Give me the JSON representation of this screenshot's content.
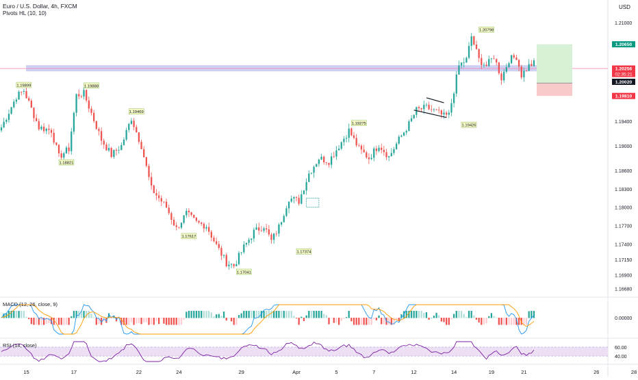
{
  "header": {
    "title": "Euro / U.S. Dollar, 4h, FXCM",
    "indicator": "Pivots HL (10, 10)",
    "currency": "USD"
  },
  "colors": {
    "up": "#26a69a",
    "down": "#ef5350",
    "price_line": "#f48fb1",
    "zone": "#c5c8f2",
    "target_zone": "#d7f0d6",
    "stop_zone": "#f9caca",
    "target_badge": "#089981",
    "stop_badge": "#f23645",
    "current_badge": "#f23645",
    "entry_badge": "#131722",
    "macd_line": "#2196f3",
    "signal_line": "#ff9800",
    "rsi_line": "#7b1fa2",
    "rsi_band": "#ede0f5",
    "pivot_label": "#f3f8c5"
  },
  "chart_data": {
    "type": "candlestick",
    "price_axis": {
      "ticks": [
        "1.21000",
        "1.19400",
        "1.19000",
        "1.18600",
        "1.18300",
        "1.18000",
        "1.17700",
        "1.17400",
        "1.17150",
        "1.16900",
        "1.16680"
      ],
      "tick_values": [
        1.21,
        1.194,
        1.19,
        1.186,
        1.183,
        1.18,
        1.177,
        1.174,
        1.1715,
        1.169,
        1.1668
      ],
      "ylim": [
        1.1655,
        1.2137
      ]
    },
    "x_axis": {
      "labels": [
        "15",
        "17",
        "22",
        "24",
        "29",
        "Apr",
        "5",
        "7",
        "12",
        "14",
        "19",
        "21",
        "26",
        "28"
      ]
    },
    "price_badges": {
      "target": {
        "label": "1.20650",
        "value": 1.2065
      },
      "current": {
        "label": "1.20256",
        "value": 1.20256,
        "countdown": "02:35:21"
      },
      "entry": {
        "label": "1.20020",
        "value": 1.2002
      },
      "stop": {
        "label": "1.19810",
        "value": 1.1981
      }
    },
    "pivots": [
      {
        "label": "1.19899",
        "value": 1.199,
        "kind": "high"
      },
      {
        "label": "1.19888",
        "value": 1.1989,
        "kind": "high"
      },
      {
        "label": "1.19469",
        "value": 1.1947,
        "kind": "high"
      },
      {
        "label": "1.18821",
        "value": 1.1882,
        "kind": "low"
      },
      {
        "label": "1.17617",
        "value": 1.1762,
        "kind": "low"
      },
      {
        "label": "1.17041",
        "value": 1.1704,
        "kind": "low"
      },
      {
        "label": "1.17374",
        "value": 1.1737,
        "kind": "low"
      },
      {
        "label": "1.19275",
        "value": 1.1928,
        "kind": "high"
      },
      {
        "label": "1.19426",
        "value": 1.1943,
        "kind": "low"
      },
      {
        "label": "1.20798",
        "value": 1.208,
        "kind": "high"
      }
    ],
    "waypoints": [
      [
        0,
        1.193
      ],
      [
        6,
        1.198
      ],
      [
        9,
        1.199
      ],
      [
        15,
        1.193
      ],
      [
        20,
        1.1925
      ],
      [
        23,
        1.1882
      ],
      [
        27,
        1.1895
      ],
      [
        30,
        1.1982
      ],
      [
        33,
        1.1985
      ],
      [
        40,
        1.191
      ],
      [
        44,
        1.1885
      ],
      [
        48,
        1.19
      ],
      [
        52,
        1.1945
      ],
      [
        56,
        1.19
      ],
      [
        60,
        1.183
      ],
      [
        66,
        1.18
      ],
      [
        70,
        1.1765
      ],
      [
        74,
        1.179
      ],
      [
        78,
        1.1775
      ],
      [
        82,
        1.177
      ],
      [
        86,
        1.1738
      ],
      [
        90,
        1.171
      ],
      [
        93,
        1.1705
      ],
      [
        97,
        1.1735
      ],
      [
        101,
        1.176
      ],
      [
        105,
        1.177
      ],
      [
        108,
        1.1745
      ],
      [
        111,
        1.1768
      ],
      [
        115,
        1.1815
      ],
      [
        119,
        1.181
      ],
      [
        123,
        1.1855
      ],
      [
        127,
        1.188
      ],
      [
        131,
        1.1875
      ],
      [
        135,
        1.19
      ],
      [
        139,
        1.1925
      ],
      [
        143,
        1.1895
      ],
      [
        147,
        1.188
      ],
      [
        151,
        1.1902
      ],
      [
        155,
        1.1882
      ],
      [
        159,
        1.191
      ],
      [
        163,
        1.1935
      ],
      [
        166,
        1.1958
      ],
      [
        170,
        1.1962
      ],
      [
        174,
        1.1955
      ],
      [
        177,
        1.1948
      ],
      [
        179,
        1.195
      ],
      [
        181,
        1.199
      ],
      [
        183,
        1.203
      ],
      [
        186,
        1.204
      ],
      [
        188,
        1.2078
      ],
      [
        191,
        1.204
      ],
      [
        194,
        1.203
      ],
      [
        197,
        1.2045
      ],
      [
        200,
        1.201
      ],
      [
        203,
        1.204
      ],
      [
        206,
        1.2045
      ],
      [
        208,
        1.2015
      ],
      [
        211,
        1.203
      ],
      [
        213,
        1.2034
      ]
    ],
    "candle_count": 214,
    "macd": {
      "label": "MACD (12, 26, close, 9)",
      "ticks": [
        "0.00000"
      ]
    },
    "rsi": {
      "label": "RSI (14, close)",
      "ticks": [
        "60.00",
        "40.00"
      ],
      "band": [
        40,
        60
      ]
    }
  }
}
